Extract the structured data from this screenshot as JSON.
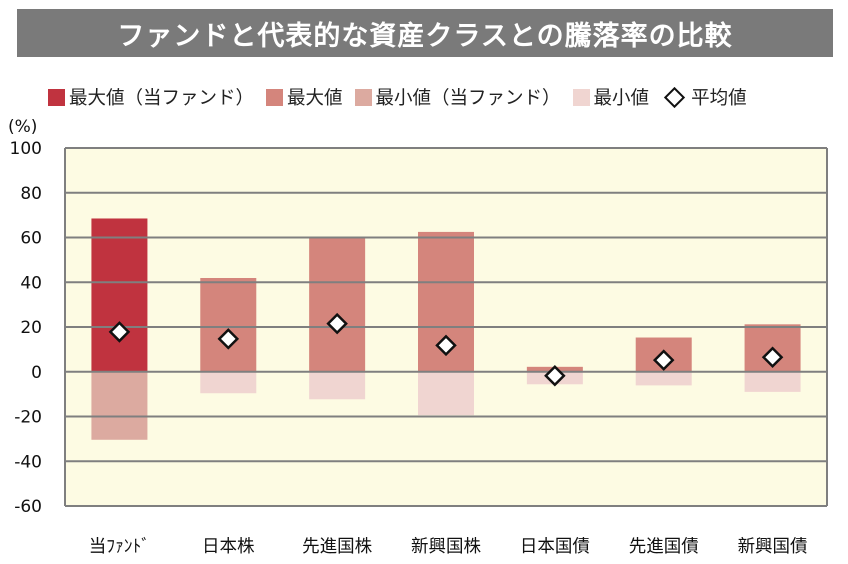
{
  "title": "ファンドと代表的な資産クラスとの騰落率の比較",
  "legend": {
    "max_fund": "最大値（当ファンド）",
    "max": "最大値",
    "min_fund": "最小値（当ファンド）",
    "min": "最小値",
    "avg": "平均値"
  },
  "colors": {
    "max_fund": "#c0333f",
    "max": "#d4857c",
    "min_fund": "#dcaaa0",
    "min": "#f0d5d1",
    "plot_bg": "#fdfbe3",
    "title_bg": "#7a7a7a"
  },
  "chart_data": {
    "type": "bar",
    "ylabel": "(%)",
    "ylim": [
      -60,
      100
    ],
    "yticks": [
      100,
      80,
      60,
      40,
      20,
      0,
      -20,
      -40,
      -60
    ],
    "grid": true,
    "legend_position": "top",
    "categories": [
      "当ﾌｧﾝﾄﾞ",
      "日本株",
      "先進国株",
      "新興国株",
      "日本国債",
      "先進国債",
      "新興国債"
    ],
    "series": [
      {
        "name": "最大値",
        "values": [
          68.5,
          41.9,
          59.8,
          62.5,
          2.2,
          15.3,
          21.2
        ]
      },
      {
        "name": "最小値",
        "values": [
          -30.4,
          -9.6,
          -12.3,
          -19.4,
          -5.6,
          -6.1,
          -9.0
        ]
      },
      {
        "name": "平均値",
        "values": [
          17.8,
          14.7,
          21.5,
          11.8,
          -1.8,
          5.2,
          6.5
        ]
      }
    ]
  }
}
